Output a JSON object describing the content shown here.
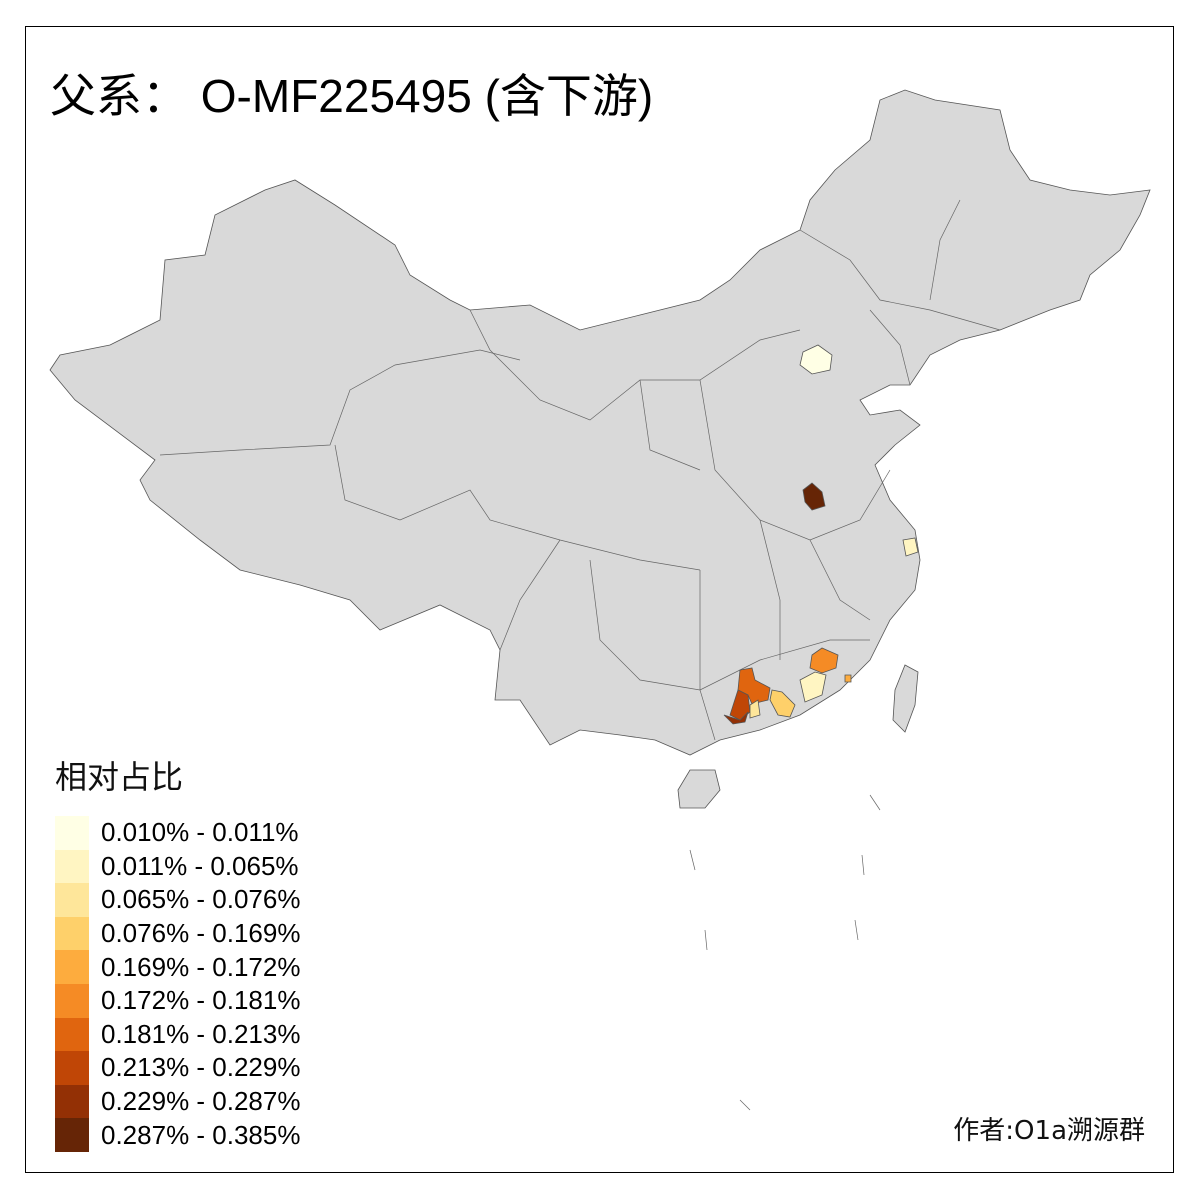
{
  "title": "父系： O-MF225495 (含下游)",
  "legend": {
    "title": "相对占比",
    "classes": [
      {
        "label": "0.010% - 0.011%",
        "color": "#FFFFE5"
      },
      {
        "label": "0.011% - 0.065%",
        "color": "#FFF5C2"
      },
      {
        "label": "0.065% - 0.076%",
        "color": "#FEE69A"
      },
      {
        "label": "0.076% - 0.169%",
        "color": "#FED06A"
      },
      {
        "label": "0.169% - 0.172%",
        "color": "#FDAC3E"
      },
      {
        "label": "0.172% - 0.181%",
        "color": "#F58B25"
      },
      {
        "label": "0.181% - 0.213%",
        "color": "#E0650F"
      },
      {
        "label": "0.213% - 0.229%",
        "color": "#C04606"
      },
      {
        "label": "0.229% - 0.287%",
        "color": "#933005"
      },
      {
        "label": "0.287% - 0.385%",
        "color": "#662506"
      }
    ]
  },
  "map": {
    "base_color": "#D9D9D9",
    "border_color": "#555555",
    "no_data_color": "#D9D9D9"
  },
  "author": "作者:O1a溯源群"
}
